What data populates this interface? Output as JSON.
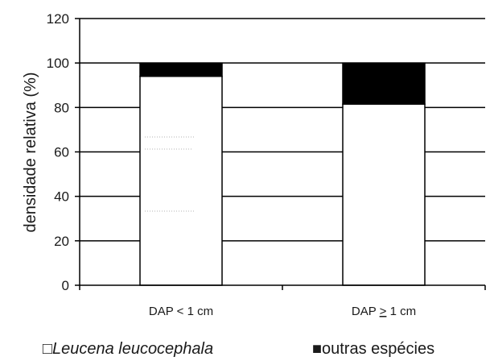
{
  "chart_data": {
    "type": "bar",
    "stacked": true,
    "categories": [
      "DAP < 1 cm",
      "DAP ≥ 1 cm"
    ],
    "category_labels": [
      {
        "text": "DAP < 1 cm"
      },
      {
        "prefix": "DAP ",
        "underlined": ">",
        "suffix": " 1 cm"
      }
    ],
    "series": [
      {
        "name": "Leucena leucocephala",
        "values": [
          94,
          81.5
        ],
        "color": "#ffffff"
      },
      {
        "name": "outras espécies",
        "values": [
          6,
          18.5
        ],
        "color": "#000000"
      }
    ],
    "title": "",
    "xlabel": "",
    "ylabel": "densidade relativa (%)",
    "ylim": [
      0,
      120
    ],
    "yticks": [
      "0",
      "20",
      "40",
      "60",
      "80",
      "100",
      "120"
    ],
    "grid": true,
    "legend_position": "bottom",
    "legend_symbols": [
      "□",
      "■"
    ]
  }
}
